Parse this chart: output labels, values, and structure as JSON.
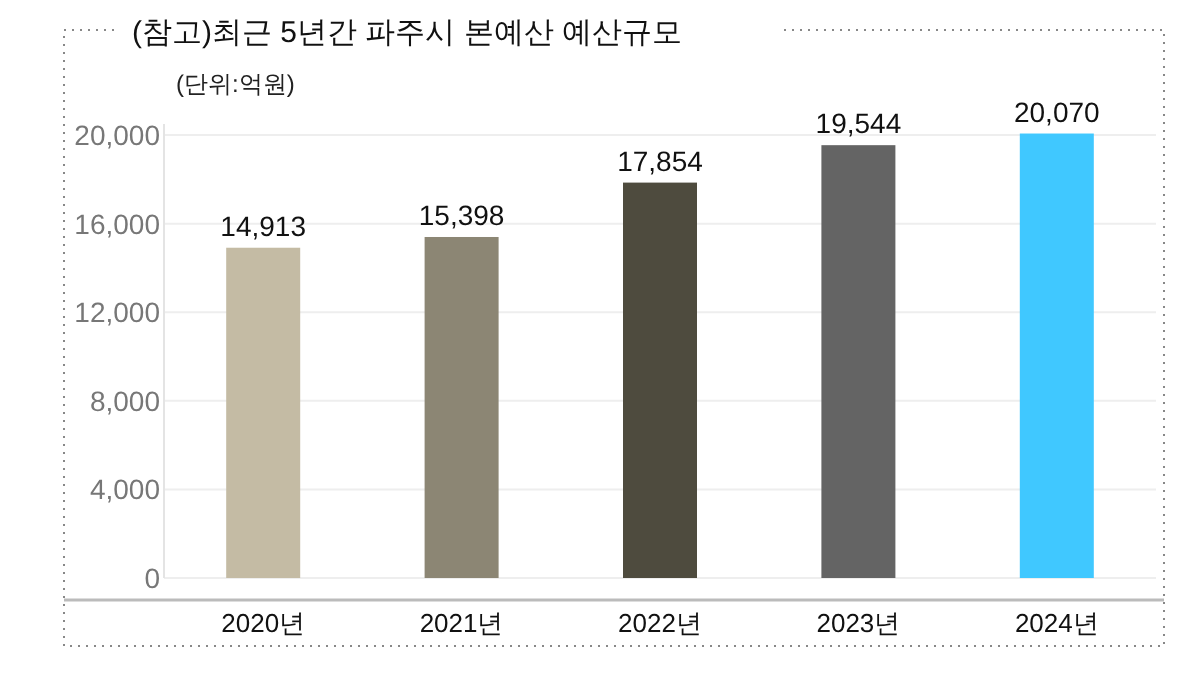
{
  "chart_data": {
    "type": "bar",
    "title": "(참고)최근 5년간 파주시 본예산 예산규모",
    "annotations": [
      "(단위:억원)"
    ],
    "categories": [
      "2020년",
      "2021년",
      "2022년",
      "2023년",
      "2024년"
    ],
    "values": [
      14913,
      15398,
      17854,
      19544,
      20070
    ],
    "colors": [
      "#c4bba4",
      "#8c8674",
      "#4e4b3e",
      "#646464",
      "#40c8ff"
    ],
    "ylim": [
      0,
      20500
    ],
    "yticks": [
      {
        "value": 0,
        "label": "0"
      },
      {
        "value": 4000,
        "label": "4,000"
      },
      {
        "value": 8000,
        "label": "8,000"
      },
      {
        "value": 12000,
        "label": "12,000"
      },
      {
        "value": 16000,
        "label": "16,000"
      },
      {
        "value": 20000,
        "label": "20,000"
      }
    ],
    "value_labels": [
      "14,913",
      "15,398",
      "17,854",
      "19,544",
      "20,070"
    ],
    "grid": "y"
  }
}
